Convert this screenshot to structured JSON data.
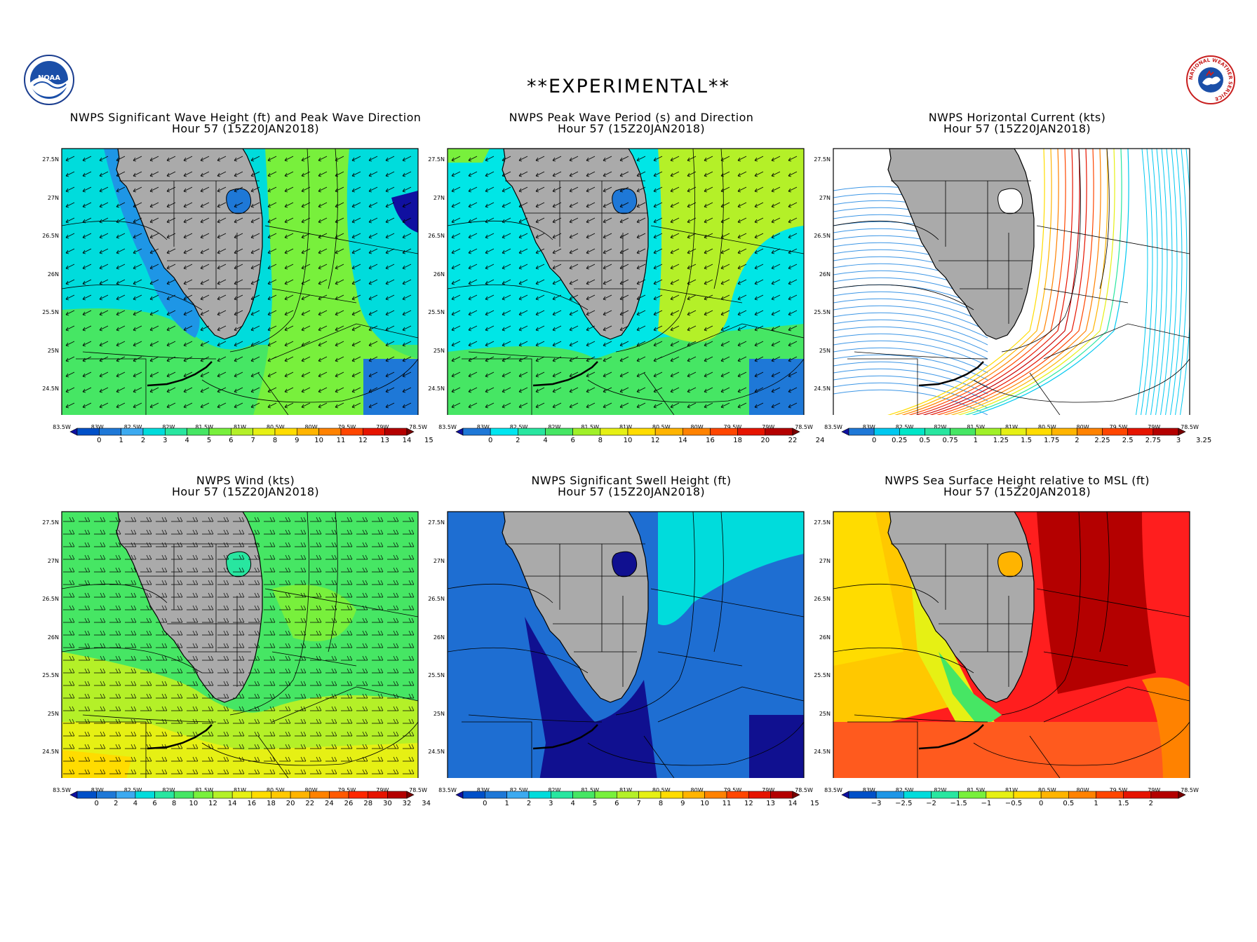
{
  "page": {
    "banner": "**EXPERIMENTAL**"
  },
  "logos": {
    "noaa": "NOAA",
    "nws": "NATIONAL WEATHER SERVICE"
  },
  "axes": {
    "lat_labels": [
      "27.5N",
      "27N",
      "26.5N",
      "26N",
      "25.5N",
      "25N",
      "24.5N"
    ],
    "lon_labels": [
      "83.5W",
      "83W",
      "82.5W",
      "82W",
      "81.5W",
      "81W",
      "80.5W",
      "80W",
      "79.5W",
      "79W",
      "78.5W"
    ]
  },
  "panels": [
    {
      "id": "wave-height",
      "title": "NWPS Significant Wave Height (ft) and Peak Wave Direction",
      "subtitle": "Hour 57 (15Z20JAN2018)",
      "overlay": "arrows",
      "colorbar": {
        "labels": [
          "0",
          "1",
          "2",
          "3",
          "4",
          "5",
          "6",
          "7",
          "8",
          "9",
          "10",
          "11",
          "12",
          "13",
          "14",
          "15"
        ],
        "colors": [
          "#1010a0",
          "#0050c8",
          "#1e78d7",
          "#3caaf0",
          "#00dcdc",
          "#28e6a0",
          "#46e664",
          "#78f03c",
          "#b4f028",
          "#e6f014",
          "#ffdc00",
          "#ffb400",
          "#ff8200",
          "#ff4600",
          "#e61400",
          "#b40000",
          "#780000"
        ]
      }
    },
    {
      "id": "peak-period",
      "title": "NWPS Peak Wave Period (s) and Direction",
      "subtitle": "Hour 57 (15Z20JAN2018)",
      "overlay": "arrows",
      "colorbar": {
        "labels": [
          "0",
          "2",
          "4",
          "6",
          "8",
          "10",
          "12",
          "14",
          "16",
          "18",
          "20",
          "22",
          "24"
        ],
        "colors": [
          "#1010a0",
          "#1e78d7",
          "#00e6f0",
          "#28e6a0",
          "#46e664",
          "#a0f028",
          "#e6f014",
          "#ffdc00",
          "#ffb400",
          "#ff8200",
          "#ff4600",
          "#e61400",
          "#b40000",
          "#780000"
        ]
      }
    },
    {
      "id": "current",
      "title": "NWPS Horizontal Current (kts)",
      "subtitle": "Hour 57 (15Z20JAN2018)",
      "overlay": "streams",
      "colorbar": {
        "labels": [
          "0",
          "0.25",
          "0.5",
          "0.75",
          "1",
          "1.25",
          "1.5",
          "1.75",
          "2",
          "2.25",
          "2.5",
          "2.75",
          "3",
          "3.25"
        ],
        "colors": [
          "#1010a0",
          "#1e78d7",
          "#00c8f0",
          "#00e6c8",
          "#28e6a0",
          "#46e664",
          "#a0f028",
          "#e6f014",
          "#ffdc00",
          "#ffb400",
          "#ff8200",
          "#ff4600",
          "#e61400",
          "#b40000",
          "#780000"
        ]
      }
    },
    {
      "id": "wind",
      "title": "NWPS Wind (kts)",
      "subtitle": "Hour 57 (15Z20JAN2018)",
      "overlay": "barbs",
      "colorbar": {
        "labels": [
          "0",
          "2",
          "4",
          "6",
          "8",
          "10",
          "12",
          "14",
          "16",
          "18",
          "20",
          "22",
          "24",
          "26",
          "28",
          "30",
          "32",
          "34"
        ],
        "colors": [
          "#1010a0",
          "#0050c8",
          "#1e78d7",
          "#3caaf0",
          "#00dcdc",
          "#28e6a0",
          "#46e664",
          "#78f03c",
          "#b4f028",
          "#e6f014",
          "#ffdc00",
          "#ffc800",
          "#ffb400",
          "#ff8200",
          "#ff5a00",
          "#ff2800",
          "#e61400",
          "#b40000",
          "#780000"
        ]
      }
    },
    {
      "id": "swell",
      "title": "NWPS Significant Swell Height (ft)",
      "subtitle": "Hour 57 (15Z20JAN2018)",
      "overlay": "none",
      "colorbar": {
        "labels": [
          "0",
          "1",
          "2",
          "3",
          "4",
          "5",
          "6",
          "7",
          "8",
          "9",
          "10",
          "11",
          "12",
          "13",
          "14",
          "15"
        ],
        "colors": [
          "#1010a0",
          "#0050c8",
          "#1e78d7",
          "#3caaf0",
          "#00dcdc",
          "#28e6a0",
          "#46e664",
          "#78f03c",
          "#b4f028",
          "#e6f014",
          "#ffdc00",
          "#ffb400",
          "#ff8200",
          "#ff4600",
          "#e61400",
          "#b40000",
          "#780000"
        ]
      }
    },
    {
      "id": "sea-surface",
      "title": "NWPS Sea Surface Height relative to MSL (ft)",
      "subtitle": "Hour 57 (15Z20JAN2018)",
      "overlay": "none",
      "colorbar": {
        "labels": [
          "−3",
          "−2.5",
          "−2",
          "−1.5",
          "−1",
          "−0.5",
          "0",
          "0.5",
          "1",
          "1.5",
          "2"
        ],
        "colors": [
          "#1010a0",
          "#0050c8",
          "#1e96e6",
          "#00dcdc",
          "#28e6a0",
          "#78f03c",
          "#e6f014",
          "#ffdc00",
          "#ffb400",
          "#ff8200",
          "#ff4600",
          "#e61400",
          "#b40000",
          "#780000"
        ]
      }
    }
  ]
}
